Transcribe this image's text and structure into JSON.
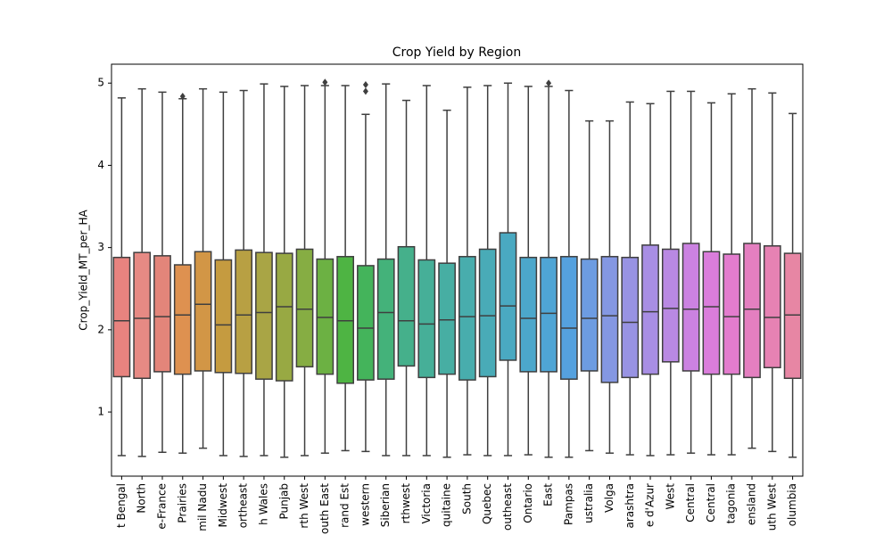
{
  "chart_data": {
    "type": "box",
    "title": "Crop Yield by Region",
    "y_label": "Crop_Yield_MT_per_HA",
    "categories": [
      "t Bengal",
      "North",
      "e-France",
      "Prairies",
      "mil Nadu",
      "Midwest",
      "ortheast",
      "h Wales",
      "Punjab",
      "rth West",
      "outh East",
      "rand Est",
      "western",
      "Siberian",
      "rthwest",
      "Victoria",
      "quitaine",
      "South",
      "Quebec",
      "outheast",
      "Ontario",
      "East",
      "Pampas",
      "ustralia",
      "Volga",
      "arashtra",
      "e d'Azur",
      "West",
      "Central",
      "Central",
      "tagonia",
      "ensland",
      "uth West",
      "olumbia"
    ],
    "boxes": [
      {
        "min": 0.47,
        "q1": 1.43,
        "median": 2.11,
        "q3": 2.88,
        "max": 4.82,
        "color": "#e8837f"
      },
      {
        "min": 0.46,
        "q1": 1.41,
        "median": 2.14,
        "q3": 2.94,
        "max": 4.93,
        "color": "#e68a84"
      },
      {
        "min": 0.51,
        "q1": 1.49,
        "median": 2.16,
        "q3": 2.9,
        "max": 4.89,
        "color": "#e3857a"
      },
      {
        "min": 0.5,
        "q1": 1.46,
        "median": 2.18,
        "q3": 2.79,
        "max": 4.81,
        "outliers": [
          4.84
        ],
        "color": "#de9150"
      },
      {
        "min": 0.56,
        "q1": 1.5,
        "median": 2.31,
        "q3": 2.95,
        "max": 4.93,
        "color": "#d29646"
      },
      {
        "min": 0.47,
        "q1": 1.48,
        "median": 2.06,
        "q3": 2.85,
        "max": 4.89,
        "color": "#c59b40"
      },
      {
        "min": 0.46,
        "q1": 1.47,
        "median": 2.18,
        "q3": 2.97,
        "max": 4.91,
        "color": "#b8a043"
      },
      {
        "min": 0.47,
        "q1": 1.4,
        "median": 2.21,
        "q3": 2.94,
        "max": 4.99,
        "color": "#a9a545"
      },
      {
        "min": 0.45,
        "q1": 1.38,
        "median": 2.28,
        "q3": 2.93,
        "max": 4.96,
        "color": "#98a943"
      },
      {
        "min": 0.47,
        "q1": 1.55,
        "median": 2.25,
        "q3": 2.98,
        "max": 4.97,
        "color": "#86ad43"
      },
      {
        "min": 0.5,
        "q1": 1.46,
        "median": 2.15,
        "q3": 2.86,
        "max": 4.97,
        "outliers": [
          5.01
        ],
        "color": "#6cb143"
      },
      {
        "min": 0.53,
        "q1": 1.35,
        "median": 2.11,
        "q3": 2.89,
        "max": 4.97,
        "color": "#4eb443"
      },
      {
        "min": 0.52,
        "q1": 1.39,
        "median": 2.02,
        "q3": 2.78,
        "max": 4.62,
        "outliers": [
          4.98,
          4.9
        ],
        "color": "#44b45b"
      },
      {
        "min": 0.47,
        "q1": 1.4,
        "median": 2.21,
        "q3": 2.86,
        "max": 4.99,
        "color": "#44b27a"
      },
      {
        "min": 0.47,
        "q1": 1.56,
        "median": 2.11,
        "q3": 3.01,
        "max": 4.79,
        "color": "#45b08b"
      },
      {
        "min": 0.47,
        "q1": 1.42,
        "median": 2.07,
        "q3": 2.85,
        "max": 4.97,
        "color": "#46af98"
      },
      {
        "min": 0.45,
        "q1": 1.46,
        "median": 2.12,
        "q3": 2.81,
        "max": 4.67,
        "color": "#47aea3"
      },
      {
        "min": 0.48,
        "q1": 1.39,
        "median": 2.16,
        "q3": 2.89,
        "max": 4.95,
        "color": "#48adad"
      },
      {
        "min": 0.47,
        "q1": 1.43,
        "median": 2.17,
        "q3": 2.98,
        "max": 4.97,
        "color": "#49abb7"
      },
      {
        "min": 0.47,
        "q1": 1.63,
        "median": 2.29,
        "q3": 3.18,
        "max": 5.0,
        "color": "#4aa9c1"
      },
      {
        "min": 0.48,
        "q1": 1.49,
        "median": 2.14,
        "q3": 2.88,
        "max": 4.96,
        "color": "#4ca7cb"
      },
      {
        "min": 0.45,
        "q1": 1.49,
        "median": 2.2,
        "q3": 2.88,
        "max": 4.96,
        "outliers": [
          5.0
        ],
        "color": "#4fa5d5"
      },
      {
        "min": 0.45,
        "q1": 1.4,
        "median": 2.02,
        "q3": 2.89,
        "max": 4.91,
        "color": "#55a1de"
      },
      {
        "min": 0.53,
        "q1": 1.5,
        "median": 2.14,
        "q3": 2.86,
        "max": 4.54,
        "color": "#6d9ce1"
      },
      {
        "min": 0.5,
        "q1": 1.36,
        "median": 2.17,
        "q3": 2.89,
        "max": 4.54,
        "color": "#8497e2"
      },
      {
        "min": 0.48,
        "q1": 1.42,
        "median": 2.09,
        "q3": 2.88,
        "max": 4.77,
        "color": "#9893e3"
      },
      {
        "min": 0.47,
        "q1": 1.46,
        "median": 2.22,
        "q3": 3.03,
        "max": 4.75,
        "color": "#a88ee4"
      },
      {
        "min": 0.48,
        "q1": 1.61,
        "median": 2.26,
        "q3": 2.98,
        "max": 4.9,
        "color": "#b989e3"
      },
      {
        "min": 0.5,
        "q1": 1.5,
        "median": 2.25,
        "q3": 3.05,
        "max": 4.9,
        "color": "#cb82e1"
      },
      {
        "min": 0.48,
        "q1": 1.46,
        "median": 2.28,
        "q3": 2.95,
        "max": 4.76,
        "color": "#da7ddb"
      },
      {
        "min": 0.48,
        "q1": 1.46,
        "median": 2.16,
        "q3": 2.92,
        "max": 4.87,
        "color": "#e37cce"
      },
      {
        "min": 0.56,
        "q1": 1.42,
        "median": 2.25,
        "q3": 3.05,
        "max": 4.93,
        "color": "#e47fc0"
      },
      {
        "min": 0.52,
        "q1": 1.54,
        "median": 2.15,
        "q3": 3.02,
        "max": 4.88,
        "color": "#e682b3"
      },
      {
        "min": 0.45,
        "q1": 1.41,
        "median": 2.18,
        "q3": 2.93,
        "max": 4.63,
        "color": "#e786a4"
      }
    ],
    "line_color": "#3f3f3f",
    "ylim": [
      0.22,
      5.23
    ],
    "yticks": [
      1,
      2,
      3,
      4,
      5
    ]
  }
}
